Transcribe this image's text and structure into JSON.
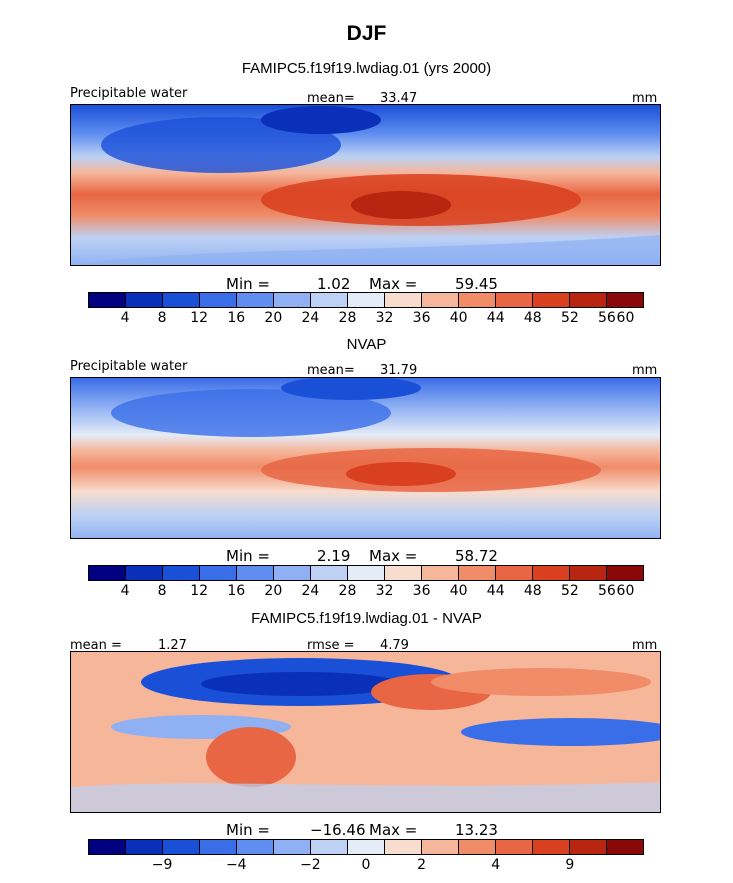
{
  "chart_data": [
    {
      "type": "heatmap",
      "title": "DJF",
      "subtitle": "FAMIPC5.f19f19.lwdiag.01 (yrs 2000)",
      "left_label": "Precipitable water",
      "stat_label": "mean=",
      "stat_value": "33.47",
      "units": "mm",
      "min_label": "Min =",
      "min": "1.02",
      "max_label": "Max =",
      "max": "59.45",
      "colorbar_ticks": [
        "4",
        "8",
        "12",
        "16",
        "20",
        "24",
        "28",
        "32",
        "36",
        "40",
        "44",
        "48",
        "52",
        "56",
        "60"
      ]
    },
    {
      "type": "heatmap",
      "subtitle": "NVAP",
      "left_label": "Precipitable water",
      "stat_label": "mean=",
      "stat_value": "31.79",
      "units": "mm",
      "min_label": "Min =",
      "min": "2.19",
      "max_label": "Max =",
      "max": "58.72",
      "colorbar_ticks": [
        "4",
        "8",
        "12",
        "16",
        "20",
        "24",
        "28",
        "32",
        "36",
        "40",
        "44",
        "48",
        "52",
        "56",
        "60"
      ]
    },
    {
      "type": "heatmap",
      "subtitle": "FAMIPC5.f19f19.lwdiag.01 - NVAP",
      "left_label": "mean =",
      "left_value": "1.27",
      "stat_label": "rmse =",
      "stat_value": "4.79",
      "units": "mm",
      "min_label": "Min =",
      "min": "−16.46",
      "max_label": "Max =",
      "max": "13.23",
      "colorbar_ticks": [
        "−9",
        "−4",
        "−2",
        "0",
        "2",
        "4",
        "9"
      ]
    }
  ],
  "colors": {
    "abs_scale": [
      "#000080",
      "#0a2fb8",
      "#1a4fd8",
      "#3a6ee8",
      "#5f8ef0",
      "#8fb0f2",
      "#bcd1f4",
      "#e4ecf8",
      "#f8dccd",
      "#f6b69a",
      "#f08c68",
      "#e86644",
      "#d8401f",
      "#b82510",
      "#8a0808"
    ],
    "diff_scale": [
      "#000080",
      "#0a2fb8",
      "#1a4fd8",
      "#3a6ee8",
      "#5f8ef0",
      "#8fb0f2",
      "#bcd1f4",
      "#e4ecf8",
      "#f8dccd",
      "#f6b69a",
      "#f08c68",
      "#e86644",
      "#d8401f",
      "#b82510",
      "#8a0808"
    ]
  }
}
